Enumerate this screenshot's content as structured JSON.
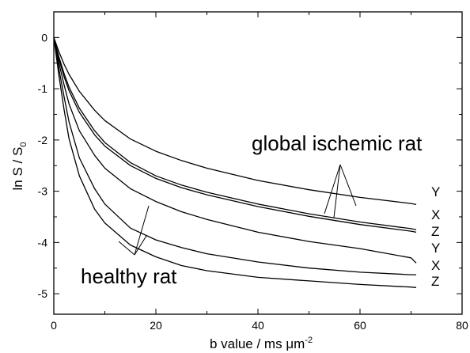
{
  "chart_data": {
    "type": "line",
    "xlabel_main": "b value  /  ms ",
    "xlabel_unit": "μm",
    "xlabel_exp": "-2",
    "ylabel_main": "ln S / S",
    "ylabel_sub": "0",
    "xlim": [
      0,
      80
    ],
    "ylim": [
      -5.4,
      0.5
    ],
    "x_ticks": [
      0,
      20,
      40,
      60,
      80
    ],
    "y_ticks": [
      0,
      -1,
      -2,
      -3,
      -4,
      -5
    ],
    "x_tick_labels": [
      "0",
      "20",
      "40",
      "60",
      "80"
    ],
    "y_tick_labels": [
      "0",
      "-1",
      "-2",
      "-3",
      "-4",
      "-5"
    ],
    "series": [
      {
        "name": "Y",
        "group": "global ischemic rat",
        "x": [
          0,
          1,
          2,
          3,
          5,
          8,
          10,
          15,
          20,
          25,
          30,
          40,
          50,
          60,
          70,
          71
        ],
        "y": [
          0,
          -0.28,
          -0.52,
          -0.72,
          -1.05,
          -1.42,
          -1.62,
          -1.98,
          -2.22,
          -2.4,
          -2.55,
          -2.79,
          -2.97,
          -3.12,
          -3.24,
          -3.26
        ]
      },
      {
        "name": "X",
        "group": "global ischemic rat",
        "x": [
          0,
          1,
          2,
          3,
          5,
          8,
          10,
          15,
          20,
          25,
          30,
          40,
          50,
          60,
          70,
          71
        ],
        "y": [
          0,
          -0.38,
          -0.7,
          -0.97,
          -1.38,
          -1.82,
          -2.05,
          -2.44,
          -2.7,
          -2.88,
          -3.02,
          -3.25,
          -3.44,
          -3.6,
          -3.73,
          -3.75
        ]
      },
      {
        "name": "Z",
        "group": "global ischemic rat",
        "x": [
          0,
          1,
          2,
          3,
          5,
          8,
          10,
          15,
          20,
          25,
          30,
          40,
          50,
          60,
          70,
          71
        ],
        "y": [
          0,
          -0.42,
          -0.76,
          -1.04,
          -1.46,
          -1.9,
          -2.12,
          -2.5,
          -2.75,
          -2.93,
          -3.07,
          -3.3,
          -3.49,
          -3.65,
          -3.78,
          -3.8
        ]
      },
      {
        "name": "Y",
        "group": "healthy rat",
        "x": [
          0,
          1,
          2,
          3,
          5,
          8,
          10,
          15,
          20,
          25,
          30,
          40,
          50,
          60,
          70,
          71
        ],
        "y": [
          0,
          -0.5,
          -0.92,
          -1.3,
          -1.82,
          -2.3,
          -2.55,
          -2.95,
          -3.2,
          -3.4,
          -3.55,
          -3.8,
          -3.98,
          -4.12,
          -4.3,
          -4.4
        ]
      },
      {
        "name": "X",
        "group": "healthy rat",
        "x": [
          0,
          1,
          2,
          3,
          5,
          8,
          10,
          15,
          20,
          25,
          30,
          40,
          50,
          60,
          70,
          71
        ],
        "y": [
          0,
          -0.62,
          -1.15,
          -1.65,
          -2.35,
          -2.95,
          -3.25,
          -3.72,
          -3.95,
          -4.1,
          -4.22,
          -4.38,
          -4.5,
          -4.58,
          -4.63,
          -4.63
        ]
      },
      {
        "name": "Z",
        "group": "healthy rat",
        "x": [
          0,
          1,
          2,
          3,
          5,
          8,
          10,
          15,
          20,
          25,
          30,
          40,
          50,
          60,
          70,
          71
        ],
        "y": [
          0,
          -0.75,
          -1.4,
          -1.98,
          -2.7,
          -3.35,
          -3.62,
          -4.05,
          -4.28,
          -4.45,
          -4.55,
          -4.68,
          -4.75,
          -4.82,
          -4.87,
          -4.88
        ]
      }
    ],
    "annotations": [
      "global ischemic rat",
      "healthy rat"
    ]
  }
}
